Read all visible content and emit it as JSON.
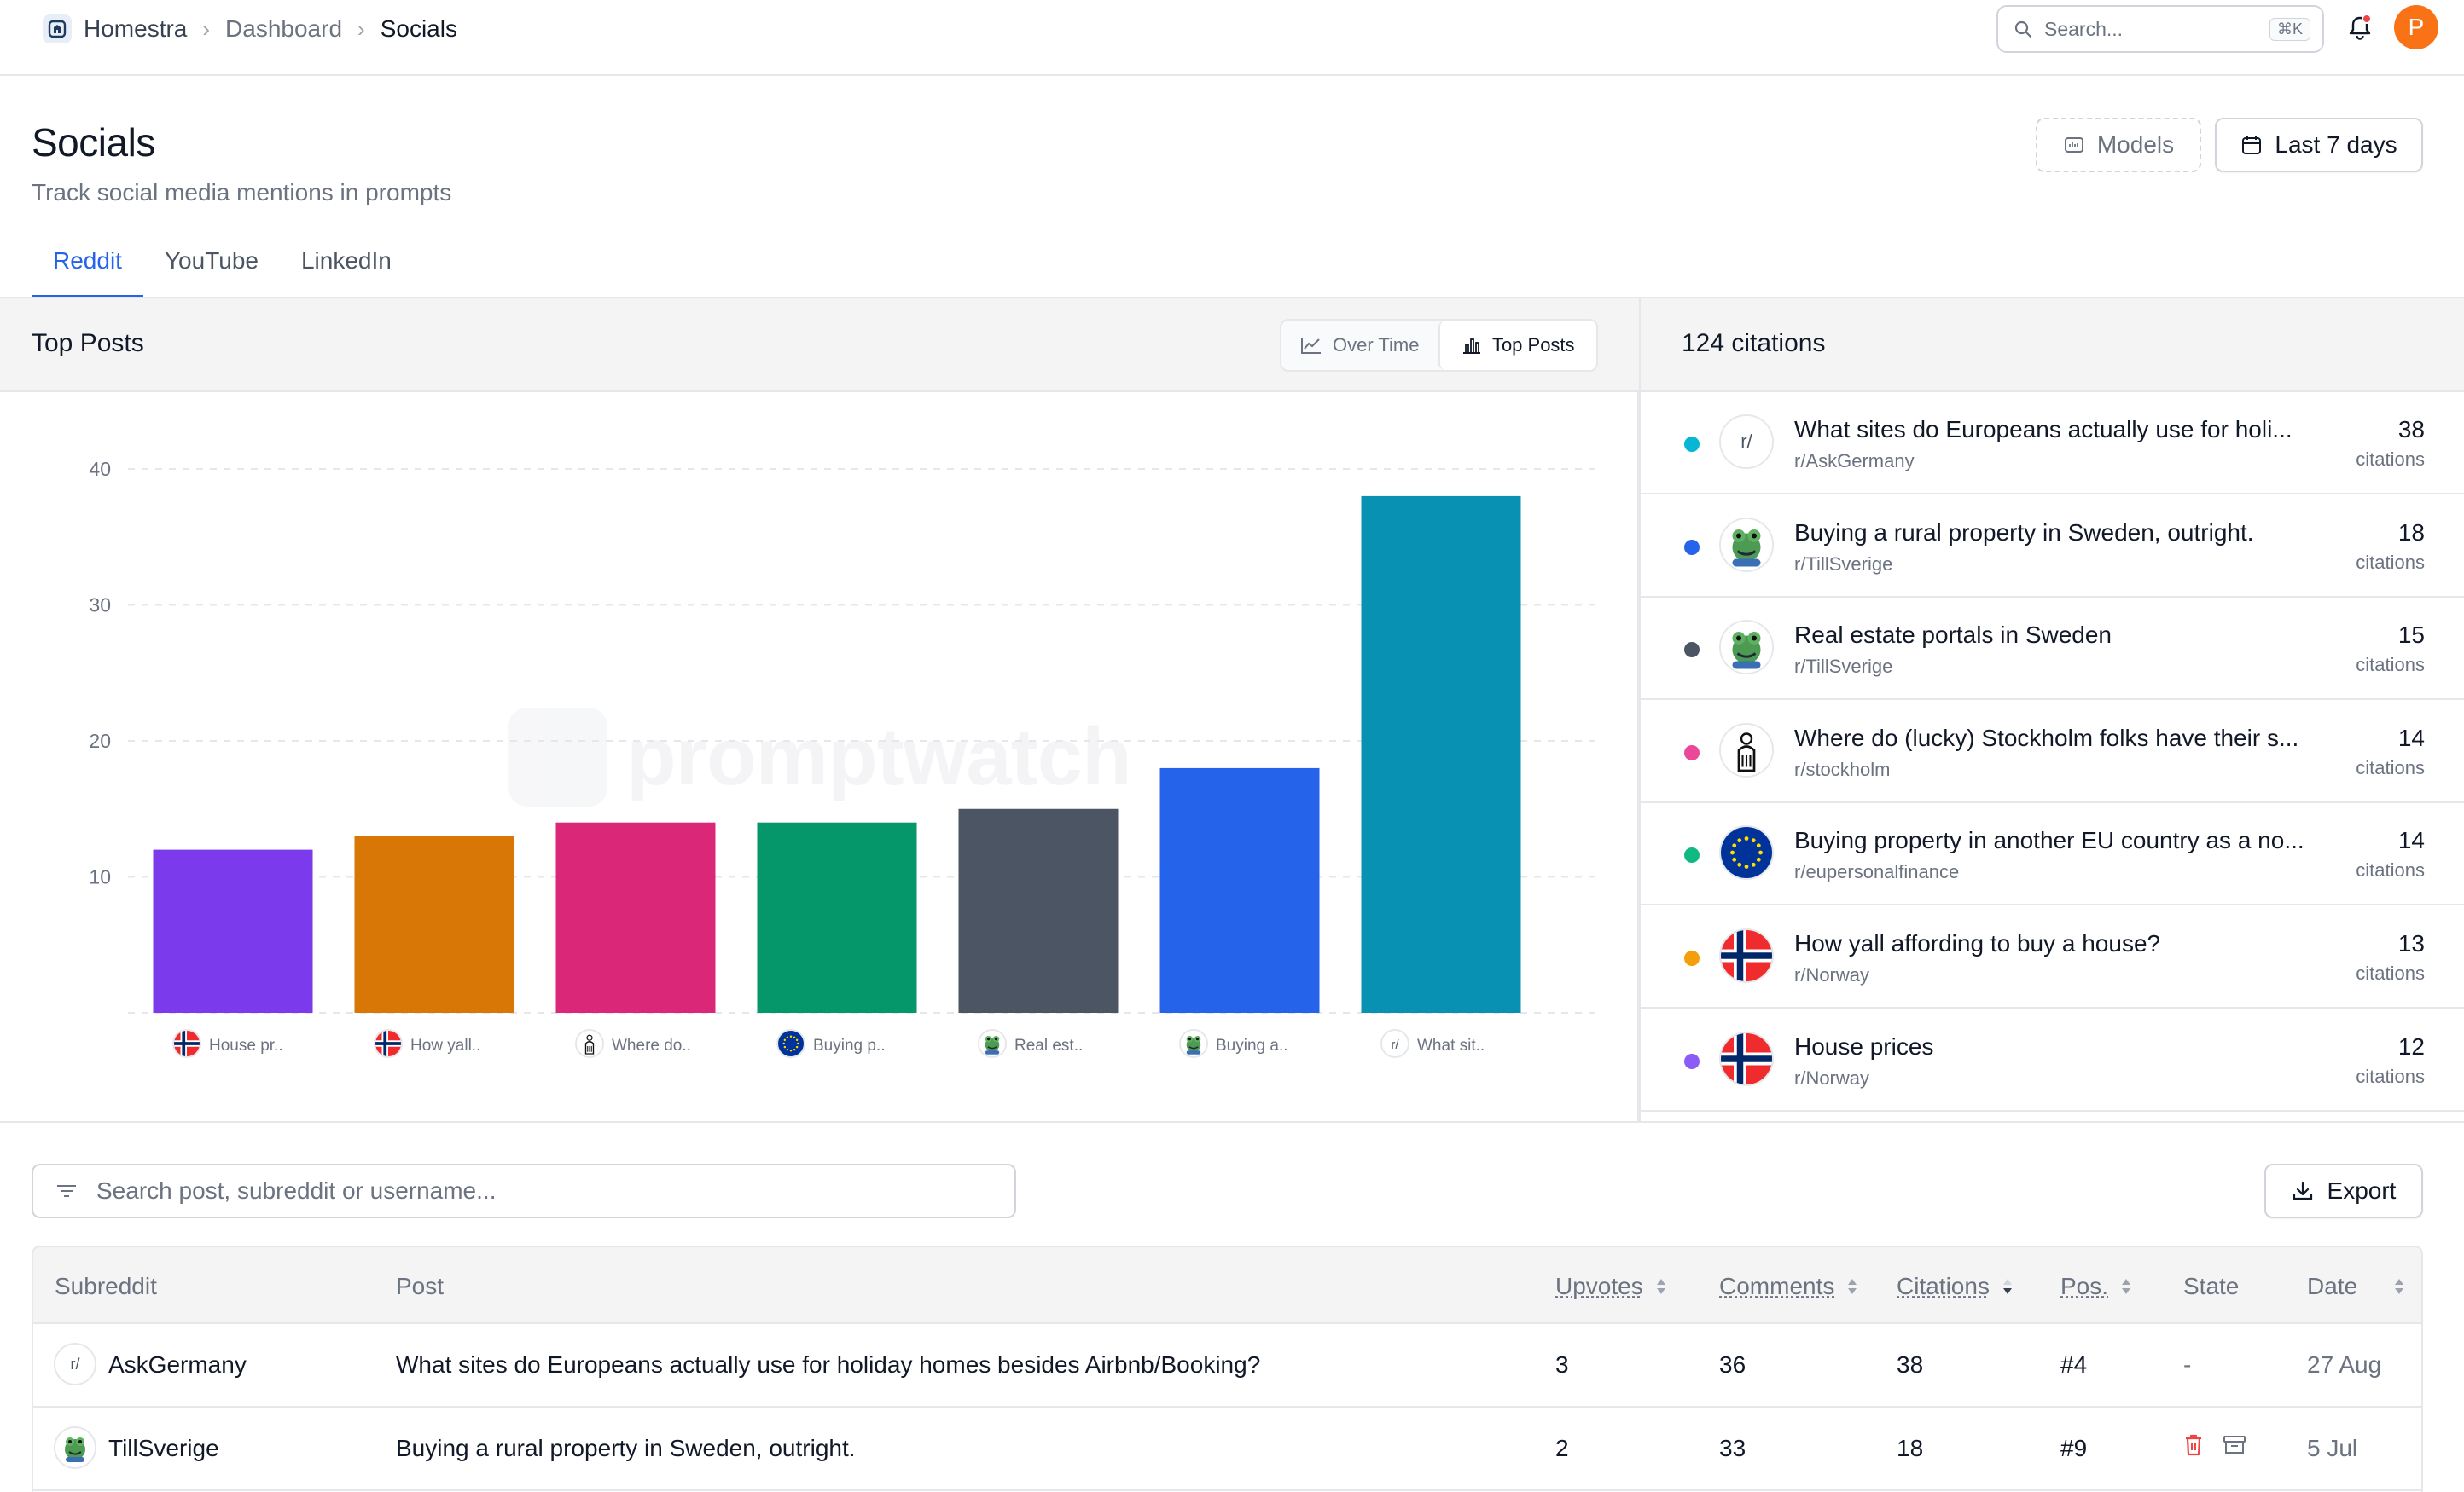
{
  "breadcrumb": {
    "home": "Homestra",
    "dashboard": "Dashboard",
    "current": "Socials"
  },
  "search": {
    "placeholder": "Search...",
    "shortcut": "⌘K"
  },
  "user": {
    "initial": "P",
    "avatar_color": "#f97316"
  },
  "header": {
    "title": "Socials",
    "subtitle": "Track social media mentions in prompts",
    "models_label": "Models",
    "range_label": "Last 7 days"
  },
  "tabs": [
    {
      "label": "Reddit",
      "active": true
    },
    {
      "label": "YouTube",
      "active": false
    },
    {
      "label": "LinkedIn",
      "active": false
    }
  ],
  "chart_panel": {
    "title": "Top Posts",
    "toggle": {
      "over_time": "Over Time",
      "top_posts": "Top Posts",
      "active": "top_posts"
    },
    "watermark": "promptwatch"
  },
  "chart_data": {
    "type": "bar",
    "categories": [
      "House pr..",
      "How yall..",
      "Where do..",
      "Buying p..",
      "Real est..",
      "Buying a..",
      "What sit.."
    ],
    "category_icons": [
      "norway-flag",
      "norway-flag",
      "stockholm-emblem",
      "eu-flag",
      "frog",
      "frog",
      "reddit-r"
    ],
    "values": [
      12,
      13,
      14,
      14,
      15,
      18,
      38
    ],
    "colors": [
      "#7c3aed",
      "#d97706",
      "#db2777",
      "#059669",
      "#4b5563",
      "#2563eb",
      "#0891b2"
    ],
    "yticks": [
      10,
      20,
      30,
      40
    ],
    "ylim": [
      0,
      40
    ],
    "grid": true,
    "title": "",
    "xlabel": "",
    "ylabel": ""
  },
  "citations": {
    "header": "124 citations",
    "unit": "citations",
    "items": [
      {
        "title": "What sites do Europeans actually use for holi...",
        "sub": "r/AskGermany",
        "count": "38",
        "color": "#06b6d4",
        "icon": "reddit-r"
      },
      {
        "title": "Buying a rural property in Sweden, outright.",
        "sub": "r/TillSverige",
        "count": "18",
        "color": "#2563eb",
        "icon": "frog"
      },
      {
        "title": "Real estate portals in Sweden",
        "sub": "r/TillSverige",
        "count": "15",
        "color": "#4b5563",
        "icon": "frog"
      },
      {
        "title": "Where do (lucky) Stockholm folks have their s...",
        "sub": "r/stockholm",
        "count": "14",
        "color": "#ec4899",
        "icon": "stockholm-emblem"
      },
      {
        "title": "Buying property in another EU country as a no...",
        "sub": "r/eupersonalfinance",
        "count": "14",
        "color": "#10b981",
        "icon": "eu-flag"
      },
      {
        "title": "How yall affording to buy a house?",
        "sub": "r/Norway",
        "count": "13",
        "color": "#f59e0b",
        "icon": "norway-flag"
      },
      {
        "title": "House prices",
        "sub": "r/Norway",
        "count": "12",
        "color": "#8b5cf6",
        "icon": "norway-flag"
      }
    ]
  },
  "table": {
    "search_placeholder": "Search post, subreddit or username...",
    "export_label": "Export",
    "columns": [
      "Subreddit",
      "Post",
      "Upvotes",
      "Comments",
      "Citations",
      "Pos.",
      "State",
      "Date"
    ],
    "rows": [
      {
        "subreddit": "AskGermany",
        "icon": "reddit-r",
        "post": "What sites do Europeans actually use for holiday homes besides Airbnb/Booking?",
        "upvotes": "3",
        "comments": "36",
        "citations": "38",
        "pos": "#4",
        "state": "-",
        "date": "27 Aug"
      },
      {
        "subreddit": "TillSverige",
        "icon": "frog",
        "post": "Buying a rural property in Sweden, outright.",
        "upvotes": "2",
        "comments": "33",
        "citations": "18",
        "pos": "#9",
        "state": "",
        "date": "5 Jul"
      }
    ]
  }
}
